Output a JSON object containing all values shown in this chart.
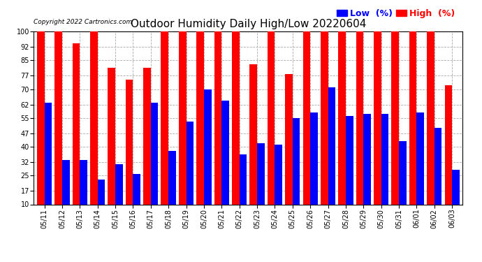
{
  "title": "Outdoor Humidity Daily High/Low 20220604",
  "copyright": "Copyright 2022 Cartronics.com",
  "background_color": "#ffffff",
  "plot_background": "#ffffff",
  "grid_color": "#aaaaaa",
  "dates": [
    "05/11",
    "05/12",
    "05/13",
    "05/14",
    "05/15",
    "05/16",
    "05/17",
    "05/18",
    "05/19",
    "05/20",
    "05/21",
    "05/22",
    "05/23",
    "05/24",
    "05/25",
    "05/26",
    "05/27",
    "05/28",
    "05/29",
    "05/30",
    "05/31",
    "06/01",
    "06/02",
    "06/03"
  ],
  "high": [
    100,
    100,
    94,
    100,
    81,
    75,
    81,
    100,
    100,
    100,
    100,
    100,
    83,
    100,
    78,
    100,
    100,
    100,
    100,
    100,
    100,
    100,
    100,
    72
  ],
  "low": [
    63,
    33,
    33,
    23,
    31,
    26,
    63,
    38,
    53,
    70,
    64,
    36,
    42,
    41,
    55,
    58,
    71,
    56,
    57,
    57,
    43,
    58,
    50,
    28
  ],
  "high_color": "#ff0000",
  "low_color": "#0000ff",
  "ylim": [
    10,
    100
  ],
  "yticks": [
    10,
    17,
    25,
    32,
    40,
    47,
    55,
    62,
    70,
    77,
    85,
    92,
    100
  ],
  "title_fontsize": 11,
  "tick_fontsize": 7,
  "legend_fontsize": 9,
  "copyright_fontsize": 6.5
}
